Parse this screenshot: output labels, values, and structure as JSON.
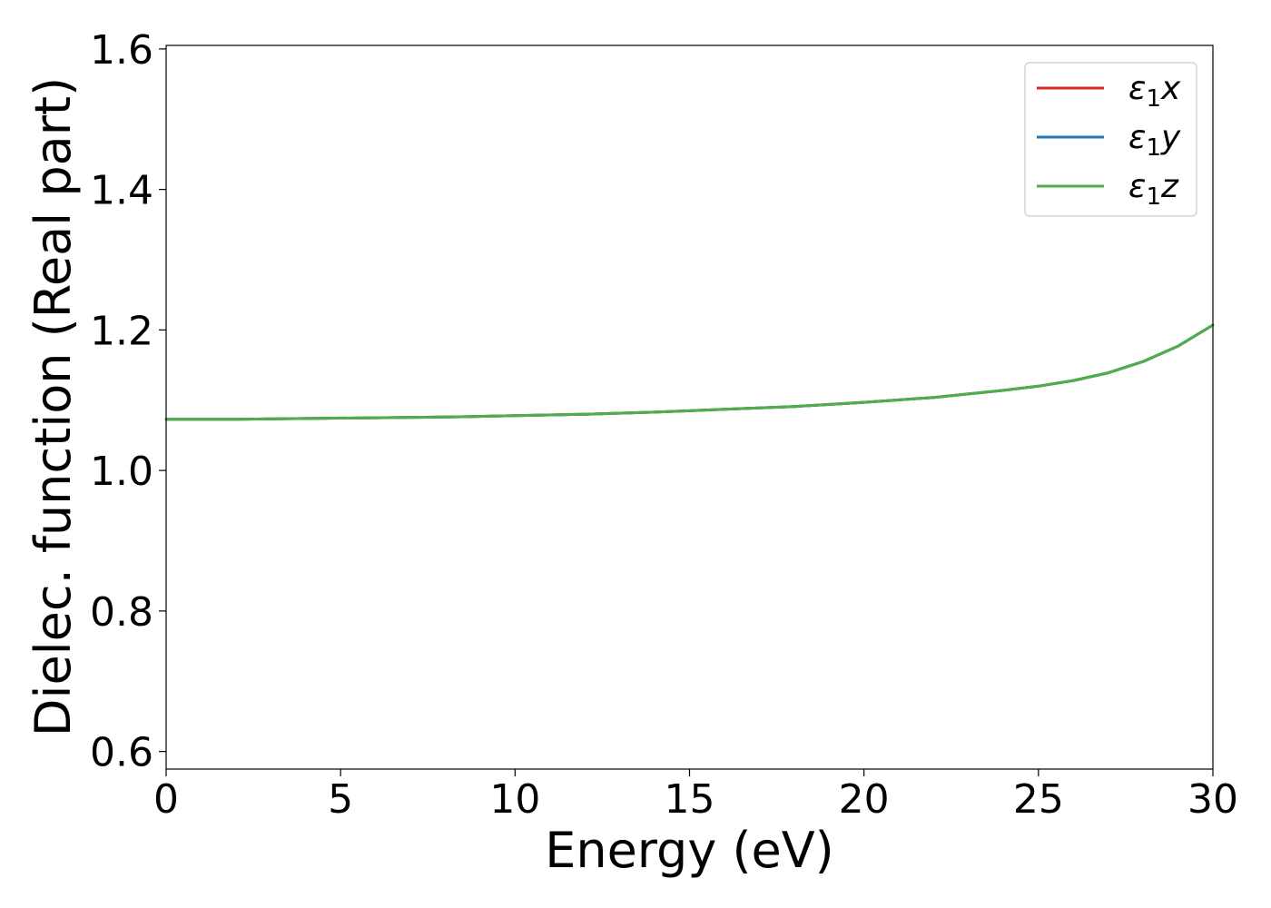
{
  "chart_data": {
    "type": "line",
    "title": "",
    "xlabel": "Energy (eV)",
    "ylabel": "Dielec. function (Real part)",
    "xlim": [
      0,
      30
    ],
    "ylim": [
      0.575,
      1.605
    ],
    "xticks": [
      0,
      5,
      10,
      15,
      20,
      25,
      30
    ],
    "xtick_labels": [
      "0",
      "5",
      "10",
      "15",
      "20",
      "25",
      "30"
    ],
    "yticks": [
      0.6,
      0.8,
      1.0,
      1.2,
      1.4,
      1.6
    ],
    "ytick_labels": [
      "0.6",
      "0.8",
      "1.0",
      "1.2",
      "1.4",
      "1.6"
    ],
    "grid": false,
    "legend_position": "top-right",
    "x": [
      0,
      2,
      4,
      6,
      8,
      10,
      12,
      14,
      16,
      18,
      20,
      22,
      24,
      25,
      26,
      27,
      28,
      29,
      30
    ],
    "series": [
      {
        "name": "ε₁x",
        "name_base": "ε",
        "name_sub": "1",
        "name_axis": "x",
        "color": "#d62728",
        "values": [
          1.073,
          1.073,
          1.074,
          1.075,
          1.076,
          1.078,
          1.08,
          1.083,
          1.087,
          1.091,
          1.097,
          1.104,
          1.114,
          1.12,
          1.128,
          1.139,
          1.155,
          1.177,
          1.207
        ]
      },
      {
        "name": "ε₁y",
        "name_base": "ε",
        "name_sub": "1",
        "name_axis": "y",
        "color": "#1f77b4",
        "values": [
          1.073,
          1.073,
          1.074,
          1.075,
          1.076,
          1.078,
          1.08,
          1.083,
          1.087,
          1.091,
          1.097,
          1.104,
          1.114,
          1.12,
          1.128,
          1.139,
          1.155,
          1.177,
          1.207
        ]
      },
      {
        "name": "ε₁z",
        "name_base": "ε",
        "name_sub": "1",
        "name_axis": "z",
        "color": "#4daf4a",
        "values": [
          1.073,
          1.073,
          1.074,
          1.075,
          1.076,
          1.078,
          1.08,
          1.083,
          1.087,
          1.091,
          1.097,
          1.104,
          1.114,
          1.12,
          1.128,
          1.139,
          1.155,
          1.177,
          1.207
        ]
      }
    ]
  }
}
